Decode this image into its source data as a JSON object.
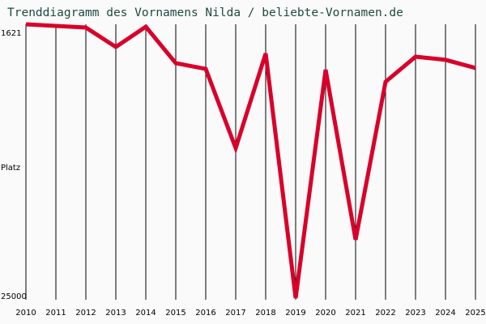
{
  "title": "Trenddiagramm des Vornamens Nilda / beliebte-Vornamen.de",
  "y_axis": {
    "top_label": "1621",
    "mid_label": "Platz",
    "bottom_label": "25000"
  },
  "colors": {
    "line": "#d9002a",
    "grid": "#000000",
    "background": "#fafafa",
    "title": "#1e4a40"
  },
  "chart_data": {
    "type": "line",
    "title": "Trenddiagramm des Vornamens Nilda / beliebte-Vornamen.de",
    "xlabel": "",
    "ylabel": "Platz",
    "ylim": [
      25000,
      1621
    ],
    "y_inverted": true,
    "grid": "vertical lines per year",
    "legend": null,
    "categories": [
      "2010",
      "2011",
      "2012",
      "2013",
      "2014",
      "2015",
      "2016",
      "2017",
      "2018",
      "2019",
      "2020",
      "2021",
      "2022",
      "2023",
      "2024",
      "2025"
    ],
    "series": [
      {
        "name": "Nilda",
        "values": [
          1621,
          1760,
          1900,
          3560,
          1830,
          4940,
          5430,
          12200,
          4110,
          25000,
          5500,
          20020,
          6530,
          4390,
          4660,
          5350
        ]
      }
    ]
  }
}
